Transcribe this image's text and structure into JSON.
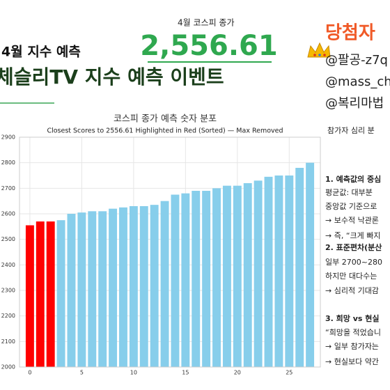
{
  "header": {
    "subtitle": "4월 지수 예측",
    "title": "체슬리TV 지수 예측 이벤트",
    "close_label": "4월 코스피 종가",
    "close_value": "2,556.61"
  },
  "winners": {
    "title": "당첨자",
    "names": [
      "@팔공-z7q",
      "@mass_ch",
      "@복리마법"
    ]
  },
  "panel": {
    "title": "참가자 심리 분",
    "lines": [
      "1. 예측값의 중심",
      "평균값: 대부분",
      "중앙값 기준으로",
      "→ 보수적 낙관론",
      "→ 즉, “크게 빠지",
      "2. 표준편차(분산",
      "일부 2700~280",
      "하지만 대다수는",
      "→ 심리적 기대감",
      "3. 희망 vs 현실",
      "“희망을 적었습니",
      "→ 일부 참가자는",
      "→ 현실보다 약간"
    ]
  },
  "chart_data": {
    "type": "bar",
    "title": "코스피 종가 예측 숫자 분포",
    "subtitle": "Closest Scores to 2556.61 Highlighted in Red (Sorted) — Max Removed",
    "x": [
      0,
      1,
      2,
      3,
      4,
      5,
      6,
      7,
      8,
      9,
      10,
      11,
      12,
      13,
      14,
      15,
      16,
      17,
      18,
      19,
      20,
      21,
      22,
      23,
      24,
      25,
      26,
      27
    ],
    "values": [
      2555,
      2570,
      2570,
      2575,
      2600,
      2605,
      2610,
      2610,
      2620,
      2625,
      2630,
      2630,
      2635,
      2650,
      2675,
      2680,
      2690,
      2690,
      2700,
      2710,
      2710,
      2720,
      2730,
      2745,
      2750,
      2750,
      2780,
      2800
    ],
    "colors": [
      "#ff0000",
      "#ff0000",
      "#ff0000",
      "#87ceeb",
      "#87ceeb",
      "#87ceeb",
      "#87ceeb",
      "#87ceeb",
      "#87ceeb",
      "#87ceeb",
      "#87ceeb",
      "#87ceeb",
      "#87ceeb",
      "#87ceeb",
      "#87ceeb",
      "#87ceeb",
      "#87ceeb",
      "#87ceeb",
      "#87ceeb",
      "#87ceeb",
      "#87ceeb",
      "#87ceeb",
      "#87ceeb",
      "#87ceeb",
      "#87ceeb",
      "#87ceeb",
      "#87ceeb",
      "#87ceeb"
    ],
    "xlim": [
      -1,
      28
    ],
    "xticks": [
      0,
      5,
      10,
      15,
      20,
      25
    ],
    "ylim": [
      2000,
      2900
    ],
    "yticks": [
      2000,
      2100,
      2200,
      2300,
      2400,
      2500,
      2600,
      2700,
      2800,
      2900
    ],
    "grid": true
  }
}
